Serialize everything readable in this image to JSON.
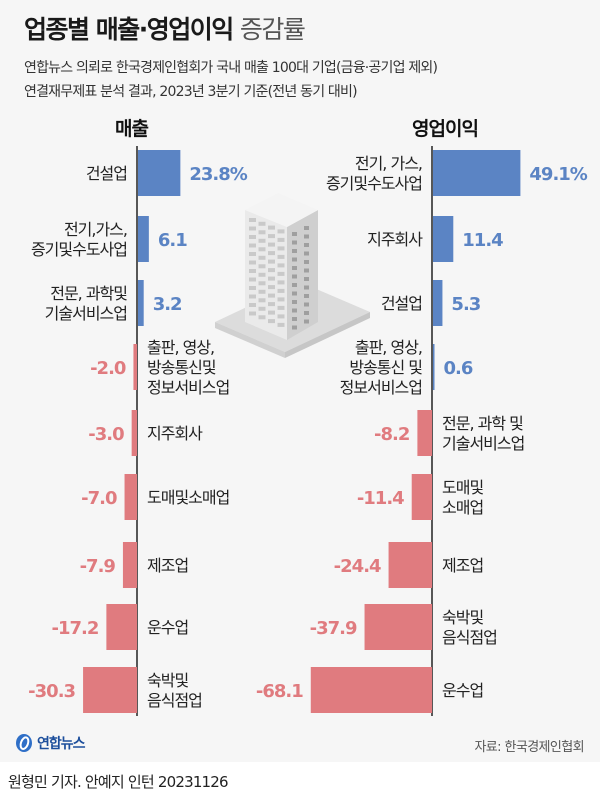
{
  "header": {
    "title_bold": "업종별 매출·영업이익",
    "title_light": "증감률",
    "subtitle_line1": "연합뉴스 의뢰로 한국경제인협회가 국내 매출 100대 기업(금융·공기업 제외)",
    "subtitle_line2": "연결재무제표 분석 결과, 2023년 3분기 기준(전년 동기 대비)"
  },
  "colors": {
    "positive": "#5b84c4",
    "negative": "#e07b7f",
    "axis": "#222222"
  },
  "chart_data": [
    {
      "type": "bar",
      "orientation": "horizontal",
      "title": "매출",
      "unit": "%",
      "categories": [
        "건설업",
        "전기,가스,\n증기및수도사업",
        "전문, 과학및\n기술서비스업",
        "출판, 영상,\n방송통신및\n정보서비스업",
        "지주회사",
        "도매및소매업",
        "제조업",
        "운수업",
        "숙박및\n음식점업"
      ],
      "values": [
        23.8,
        6.1,
        3.2,
        -2.0,
        -3.0,
        -7.0,
        -7.9,
        -17.2,
        -30.3
      ],
      "labels": [
        "23.8%",
        "6.1",
        "3.2",
        "-2.0",
        "-3.0",
        "-7.0",
        "-7.9",
        "-17.2",
        "-30.3"
      ]
    },
    {
      "type": "bar",
      "orientation": "horizontal",
      "title": "영업이익",
      "unit": "%",
      "categories": [
        "전기, 가스,\n증기및수도사업",
        "지주회사",
        "건설업",
        "출판, 영상,\n방송통신 및\n정보서비스업",
        "전문, 과학 및\n기술서비스업",
        "도매및\n소매업",
        "제조업",
        "숙박및\n음식점업",
        "운수업"
      ],
      "values": [
        49.1,
        11.4,
        5.3,
        0.6,
        -8.2,
        -11.4,
        -24.4,
        -37.9,
        -68.1
      ],
      "labels": [
        "49.1%",
        "11.4",
        "5.3",
        "0.6",
        "-8.2",
        "-11.4",
        "-24.4",
        "-37.9",
        "-68.1"
      ]
    }
  ],
  "footer": {
    "logo_text": "연합뉴스",
    "source": "자료: 한국경제인협회",
    "credit": "원형민 기자. 안예지 인턴  20231126"
  }
}
